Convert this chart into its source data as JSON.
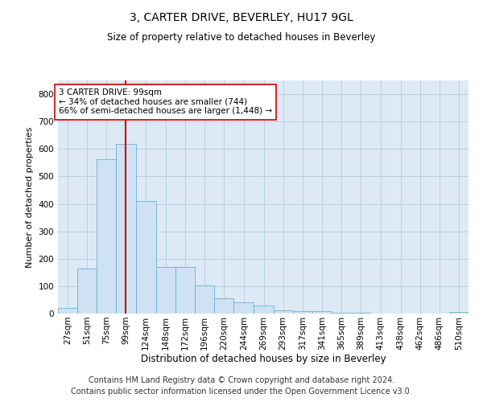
{
  "title": "3, CARTER DRIVE, BEVERLEY, HU17 9GL",
  "subtitle": "Size of property relative to detached houses in Beverley",
  "xlabel": "Distribution of detached houses by size in Beverley",
  "ylabel": "Number of detached properties",
  "bar_color": "#cfe2f3",
  "bar_edge_color": "#6aaed6",
  "grid_color": "#b8cfe0",
  "background_color": "#ddeaf5",
  "vline_color": "#cc0000",
  "annotation_text": "3 CARTER DRIVE: 99sqm\n← 34% of detached houses are smaller (744)\n66% of semi-detached houses are larger (1,448) →",
  "annotation_box_color": "#ffffff",
  "annotation_box_edge": "#cc0000",
  "categories": [
    "27sqm",
    "51sqm",
    "75sqm",
    "99sqm",
    "124sqm",
    "148sqm",
    "172sqm",
    "196sqm",
    "220sqm",
    "244sqm",
    "269sqm",
    "293sqm",
    "317sqm",
    "341sqm",
    "365sqm",
    "389sqm",
    "413sqm",
    "438sqm",
    "462sqm",
    "486sqm",
    "510sqm"
  ],
  "bin_edges": [
    15,
    39,
    63,
    87,
    111,
    136,
    160,
    184,
    208,
    232,
    257,
    281,
    305,
    329,
    353,
    377,
    401,
    426,
    450,
    474,
    498,
    522
  ],
  "values": [
    20,
    163,
    562,
    618,
    410,
    170,
    170,
    103,
    55,
    42,
    30,
    12,
    10,
    8,
    3,
    2,
    0,
    1,
    0,
    0,
    7
  ],
  "ylim": [
    0,
    850
  ],
  "yticks": [
    0,
    100,
    200,
    300,
    400,
    500,
    600,
    700,
    800
  ],
  "footnote_line1": "Contains HM Land Registry data © Crown copyright and database right 2024.",
  "footnote_line2": "Contains public sector information licensed under the Open Government Licence v3.0.",
  "footnote_fontsize": 7,
  "title_fontsize": 10,
  "subtitle_fontsize": 8.5,
  "ylabel_fontsize": 8,
  "xlabel_fontsize": 8.5,
  "tick_fontsize": 7.5,
  "annot_fontsize": 7.5
}
